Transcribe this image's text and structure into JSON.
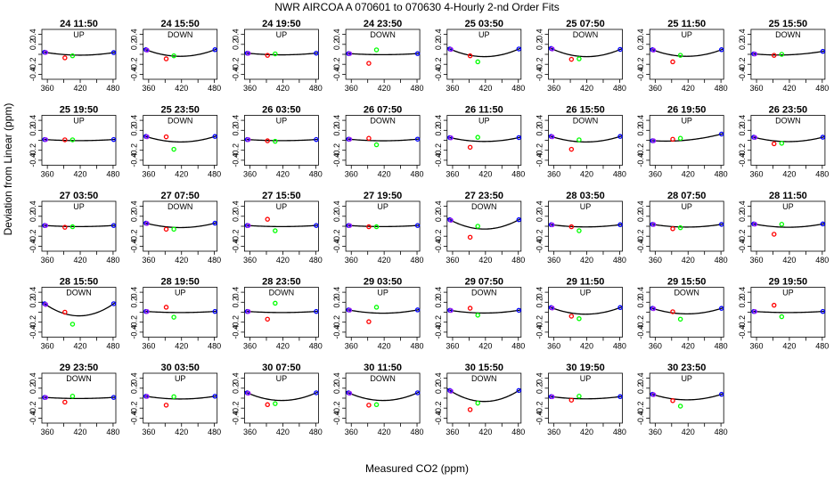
{
  "chart_data": {
    "type": "scatter",
    "title": "NWR   AIRCOA A   070601 to 070630   4-Hourly 2-nd Order Fits",
    "xlabel": "Measured CO2 (ppm)",
    "ylabel": "Deviation from Linear (ppm)",
    "xlim": [
      350,
      485
    ],
    "ylim": [
      -0.5,
      0.5
    ],
    "xticks": [
      360,
      420,
      480
    ],
    "xtick_labels": [
      "360",
      "420",
      "480"
    ],
    "xminor_ticks": [
      390,
      450
    ],
    "yticks": [
      -0.4,
      -0.2,
      0.0,
      0.2,
      0.4
    ],
    "ytick_labels": [
      "-0.4",
      "-0.2",
      "0.2",
      "0.4"
    ],
    "point_x": {
      "blue_low": 355,
      "purple": 357,
      "red": 392,
      "green": 406,
      "blue_high": 481
    },
    "series_colors": {
      "fit": "#000000",
      "blue": "#0000ff",
      "purple": "#a020f0",
      "red": "#ff0000",
      "green": "#00ff00"
    },
    "panels": [
      {
        "label": "24 11:50",
        "dir": "UP",
        "a": 0.05,
        "m": 420,
        "red": -0.07,
        "green": -0.03
      },
      {
        "label": "24 15:50",
        "dir": "DOWN",
        "a": 0.12,
        "m": 418,
        "red": -0.09,
        "green": -0.03
      },
      {
        "label": "24 19:50",
        "dir": "UP",
        "a": 0.03,
        "m": 418,
        "red": -0.02,
        "green": 0.01
      },
      {
        "label": "24 23:50",
        "dir": "DOWN",
        "a": 0.02,
        "m": 418,
        "red": -0.18,
        "green": 0.09
      },
      {
        "label": "25 03:50",
        "dir": "UP",
        "a": 0.14,
        "m": 418,
        "red": -0.03,
        "green": -0.15
      },
      {
        "label": "25 07:50",
        "dir": "DOWN",
        "a": 0.14,
        "m": 420,
        "red": -0.1,
        "green": -0.09
      },
      {
        "label": "25 11:50",
        "dir": "UP",
        "a": 0.12,
        "m": 418,
        "red": -0.15,
        "green": -0.02
      },
      {
        "label": "25 15:50",
        "dir": "DOWN",
        "a": 0.04,
        "m": 400,
        "red": -0.02,
        "green": 0.0
      },
      {
        "label": "25 19:50",
        "dir": "UP",
        "a": 0.02,
        "m": 418,
        "red": 0.01,
        "green": 0.01
      },
      {
        "label": "25 23:50",
        "dir": "DOWN",
        "a": 0.1,
        "m": 418,
        "red": 0.07,
        "green": -0.18
      },
      {
        "label": "26 03:50",
        "dir": "UP",
        "a": 0.02,
        "m": 418,
        "red": -0.01,
        "green": -0.02
      },
      {
        "label": "26 07:50",
        "dir": "DOWN",
        "a": 0.03,
        "m": 418,
        "red": 0.04,
        "green": -0.09
      },
      {
        "label": "26 11:50",
        "dir": "UP",
        "a": 0.07,
        "m": 418,
        "red": -0.14,
        "green": 0.06
      },
      {
        "label": "26 15:50",
        "dir": "DOWN",
        "a": 0.1,
        "m": 418,
        "red": -0.18,
        "green": 0.01
      },
      {
        "label": "26 19:50",
        "dir": "UP",
        "a": 0.05,
        "m": 380,
        "red": 0.02,
        "green": 0.04
      },
      {
        "label": "26 23:50",
        "dir": "DOWN",
        "a": 0.08,
        "m": 418,
        "red": -0.07,
        "green": -0.06
      },
      {
        "label": "27 03:50",
        "dir": "UP",
        "a": 0.02,
        "m": 418,
        "red": -0.02,
        "green": -0.01
      },
      {
        "label": "27 07:50",
        "dir": "DOWN",
        "a": 0.08,
        "m": 418,
        "red": -0.06,
        "green": -0.06
      },
      {
        "label": "27 15:50",
        "dir": "UP",
        "a": 0.02,
        "m": 418,
        "red": 0.14,
        "green": -0.09
      },
      {
        "label": "27 19:50",
        "dir": "UP",
        "a": 0.02,
        "m": 418,
        "red": -0.01,
        "green": -0.01
      },
      {
        "label": "27 23:50",
        "dir": "DOWN",
        "a": 0.17,
        "m": 418,
        "red": -0.22,
        "green": 0.0
      },
      {
        "label": "28 03:50",
        "dir": "UP",
        "a": 0.04,
        "m": 418,
        "red": -0.01,
        "green": -0.09
      },
      {
        "label": "28 07:50",
        "dir": "UP",
        "a": 0.05,
        "m": 418,
        "red": -0.05,
        "green": -0.03
      },
      {
        "label": "28 11:50",
        "dir": "UP",
        "a": 0.06,
        "m": 418,
        "red": -0.16,
        "green": 0.04
      },
      {
        "label": "28 15:50",
        "dir": "DOWN",
        "a": 0.22,
        "m": 418,
        "red": 0.0,
        "green": -0.24
      },
      {
        "label": "28 19:50",
        "dir": "UP",
        "a": 0.02,
        "m": 418,
        "red": 0.1,
        "green": -0.1
      },
      {
        "label": "28 23:50",
        "dir": "DOWN",
        "a": 0.02,
        "m": 418,
        "red": -0.14,
        "green": 0.18
      },
      {
        "label": "29 03:50",
        "dir": "UP",
        "a": 0.06,
        "m": 418,
        "red": -0.19,
        "green": 0.1
      },
      {
        "label": "29 07:50",
        "dir": "DOWN",
        "a": 0.05,
        "m": 418,
        "red": 0.08,
        "green": -0.06
      },
      {
        "label": "29 11:50",
        "dir": "UP",
        "a": 0.12,
        "m": 418,
        "red": -0.08,
        "green": -0.13
      },
      {
        "label": "29 15:50",
        "dir": "DOWN",
        "a": 0.1,
        "m": 418,
        "red": 0.01,
        "green": -0.14
      },
      {
        "label": "29 19:50",
        "dir": "UP",
        "a": 0.02,
        "m": 418,
        "red": 0.14,
        "green": -0.09
      },
      {
        "label": "29 23:50",
        "dir": "DOWN",
        "a": 0.02,
        "m": 418,
        "red": -0.08,
        "green": 0.04
      },
      {
        "label": "30 03:50",
        "dir": "UP",
        "a": 0.05,
        "m": 418,
        "red": -0.14,
        "green": 0.03
      },
      {
        "label": "30 07:50",
        "dir": "UP",
        "a": 0.14,
        "m": 418,
        "red": -0.13,
        "green": -0.11
      },
      {
        "label": "30 11:50",
        "dir": "DOWN",
        "a": 0.14,
        "m": 418,
        "red": -0.14,
        "green": -0.13
      },
      {
        "label": "30 15:50",
        "dir": "DOWN",
        "a": 0.2,
        "m": 418,
        "red": -0.23,
        "green": -0.1
      },
      {
        "label": "30 19:50",
        "dir": "UP",
        "a": 0.04,
        "m": 418,
        "red": -0.04,
        "green": 0.04
      },
      {
        "label": "30 23:50",
        "dir": "UP",
        "a": 0.1,
        "m": 418,
        "red": -0.05,
        "green": -0.16
      }
    ]
  }
}
